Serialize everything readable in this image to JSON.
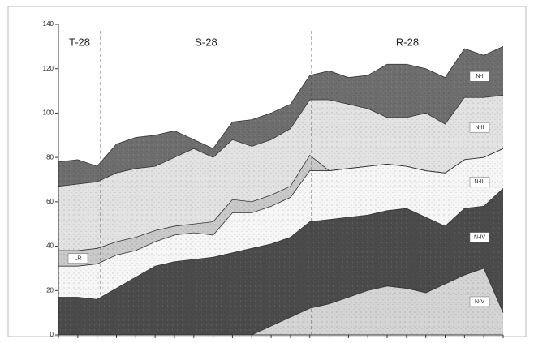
{
  "chart_data": {
    "type": "layers",
    "sections": [
      "T-28",
      "S-28",
      "R-28"
    ],
    "categories": [
      null,
      null,
      null,
      null,
      null,
      null,
      null,
      null,
      null,
      null,
      null,
      null,
      null,
      null,
      null,
      null,
      null,
      null,
      null,
      null,
      null,
      null,
      null,
      null
    ],
    "ylim": [
      0,
      140
    ],
    "yticks": [
      0,
      20,
      40,
      60,
      80,
      100,
      120,
      140
    ],
    "series": [
      {
        "name": "N-I",
        "color": "#6e6e6e",
        "values": [
          78,
          79,
          76,
          86,
          89,
          90,
          92,
          88,
          84,
          96,
          97,
          100,
          104,
          117,
          119,
          116,
          117,
          122,
          122,
          120,
          116,
          129,
          126,
          130
        ]
      },
      {
        "name": "N-II",
        "color": "#e2e2e2",
        "values": [
          67,
          68,
          69,
          73,
          75,
          76,
          80,
          84,
          80,
          88,
          85,
          88,
          93,
          106,
          106,
          104,
          102,
          98,
          98,
          100,
          95,
          107,
          107,
          108
        ]
      },
      {
        "name": "LR",
        "color": "#c9c9c9",
        "values": [
          38,
          38,
          39,
          42,
          44,
          47,
          49,
          50,
          51,
          61,
          60,
          63,
          67,
          81,
          74,
          75,
          76,
          77,
          76,
          74,
          73,
          79,
          80,
          84
        ]
      },
      {
        "name": "N-III",
        "color": "#f6f6f6",
        "values": [
          31,
          31,
          32,
          36,
          38,
          42,
          45,
          46,
          45,
          55,
          55,
          58,
          62,
          74,
          74,
          75,
          76,
          77,
          76,
          74,
          73,
          79,
          80,
          84
        ]
      },
      {
        "name": "N-IV",
        "color": "#4b4b4b",
        "values": [
          17,
          17,
          16,
          21,
          26,
          31,
          33,
          34,
          35,
          37,
          39,
          41,
          44,
          51,
          52,
          53,
          54,
          56,
          57,
          53,
          49,
          57,
          58,
          66
        ]
      },
      {
        "name": "N-V",
        "color": "#d4d4d4",
        "values": [
          null,
          null,
          null,
          null,
          null,
          null,
          null,
          null,
          null,
          null,
          0,
          4,
          8,
          12,
          14,
          17,
          20,
          22,
          21,
          19,
          23,
          27,
          30,
          10
        ]
      }
    ]
  }
}
